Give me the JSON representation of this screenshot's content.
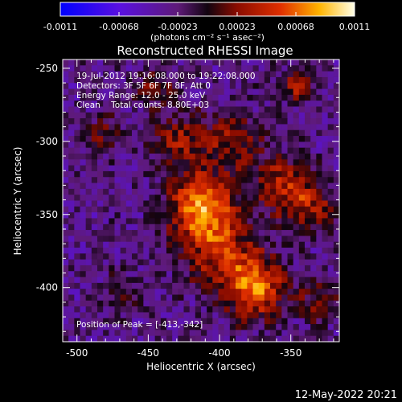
{
  "colorbar": {
    "ticks": [
      "-0.0011",
      "-0.00068",
      "-0.00023",
      "0.00023",
      "0.00068",
      "0.0011"
    ],
    "unit_label": "(photons cm⁻² s⁻¹ asec⁻²)"
  },
  "annotations": {
    "time_range": "19-Jul-2012 19:16:08.000 to 19:22:08.000",
    "detectors": "Detectors: 3F 5F 6F 7F 8F, Att 0",
    "energy": "Energy Range: 12.0 - 25.0 keV",
    "clean": "Clean    Total counts: 8.80E+03",
    "peak": "Position of Peak = [-413,-342]"
  },
  "footer": {
    "date": "12-May-2022 20:21"
  },
  "chart_data": {
    "type": "heatmap",
    "title": "Reconstructed RHESSI Image",
    "xlabel": "Heliocentric X (arcsec)",
    "ylabel": "Heliocentric Y (arcsec)",
    "xlim": [
      -510,
      -316
    ],
    "ylim": [
      -437,
      -244
    ],
    "x_ticks": [
      -500,
      -450,
      -400,
      -350
    ],
    "y_ticks": [
      -250,
      -300,
      -350,
      -400
    ],
    "colorbar_range": [
      -0.0011,
      0.0011
    ],
    "peak_position": [
      -413,
      -342
    ],
    "sources": [
      {
        "x": -412,
        "y": -345,
        "amplitude": 0.001,
        "sigma": 16
      },
      {
        "x": -375,
        "y": -400,
        "amplitude": 0.0009,
        "sigma": 15
      },
      {
        "x": -400,
        "y": -375,
        "amplitude": 0.0006,
        "sigma": 18
      },
      {
        "x": -428,
        "y": -300,
        "amplitude": 0.0005,
        "sigma": 14
      },
      {
        "x": -390,
        "y": -300,
        "amplitude": 0.0005,
        "sigma": 14
      },
      {
        "x": -355,
        "y": -330,
        "amplitude": 0.0006,
        "sigma": 14
      },
      {
        "x": -335,
        "y": -345,
        "amplitude": 0.0005,
        "sigma": 12
      },
      {
        "x": -345,
        "y": -262,
        "amplitude": 0.0006,
        "sigma": 8
      },
      {
        "x": -482,
        "y": -295,
        "amplitude": 0.0004,
        "sigma": 9
      },
      {
        "x": -445,
        "y": -262,
        "amplitude": 0.0004,
        "sigma": 10
      },
      {
        "x": -470,
        "y": -405,
        "amplitude": 0.0003,
        "sigma": 10
      },
      {
        "x": -330,
        "y": -410,
        "amplitude": 0.0004,
        "sigma": 10
      }
    ]
  }
}
